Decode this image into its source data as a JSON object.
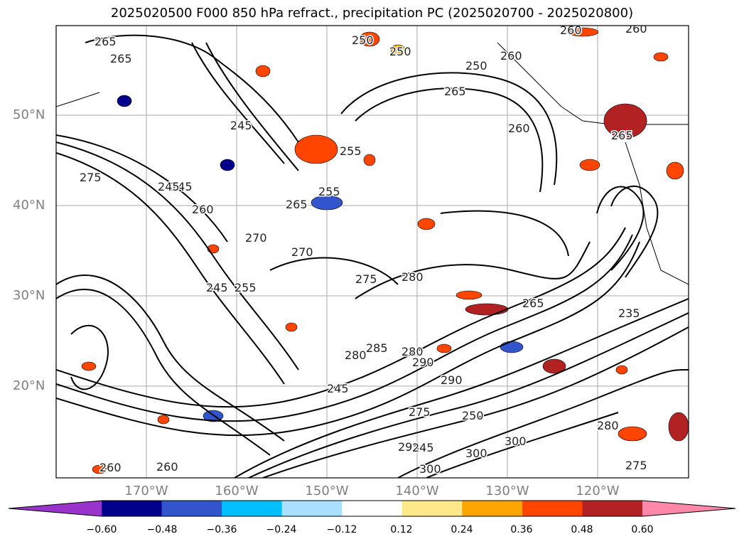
{
  "title": "2025020500 F000 850 hPa refract., precipitation PC (2025020700 - 2025020800)",
  "lat_labels": [
    "50°N",
    "40°N",
    "30°N",
    "20°N"
  ],
  "lon_labels": [
    "170°W",
    "160°W",
    "150°W",
    "140°W",
    "130°W",
    "120°W"
  ],
  "colorbar": {
    "ticks": [
      "−0.60",
      "−0.48",
      "−0.36",
      "−0.24",
      "−0.12",
      "0.12",
      "0.24",
      "0.36",
      "0.48",
      "0.60"
    ],
    "colors": [
      "#9933cc",
      "#00008b",
      "#3355cc",
      "#00bfff",
      "#aadfff",
      "#ffffff",
      "#ffe88a",
      "#ffa500",
      "#ff4500",
      "#b22222",
      "#ff88aa"
    ]
  },
  "contour_labels": [
    "265",
    "265",
    "245",
    "250",
    "260",
    "260",
    "250",
    "260",
    "265",
    "260",
    "265",
    "245",
    "255",
    "250",
    "275",
    "245",
    "260",
    "255",
    "265",
    "270",
    "270",
    "275",
    "280",
    "265",
    "235",
    "245",
    "255",
    "280",
    "285",
    "280",
    "290",
    "245",
    "290",
    "275",
    "250",
    "280",
    "300",
    "295",
    "245",
    "300",
    "275",
    "260",
    "260",
    "300"
  ]
}
